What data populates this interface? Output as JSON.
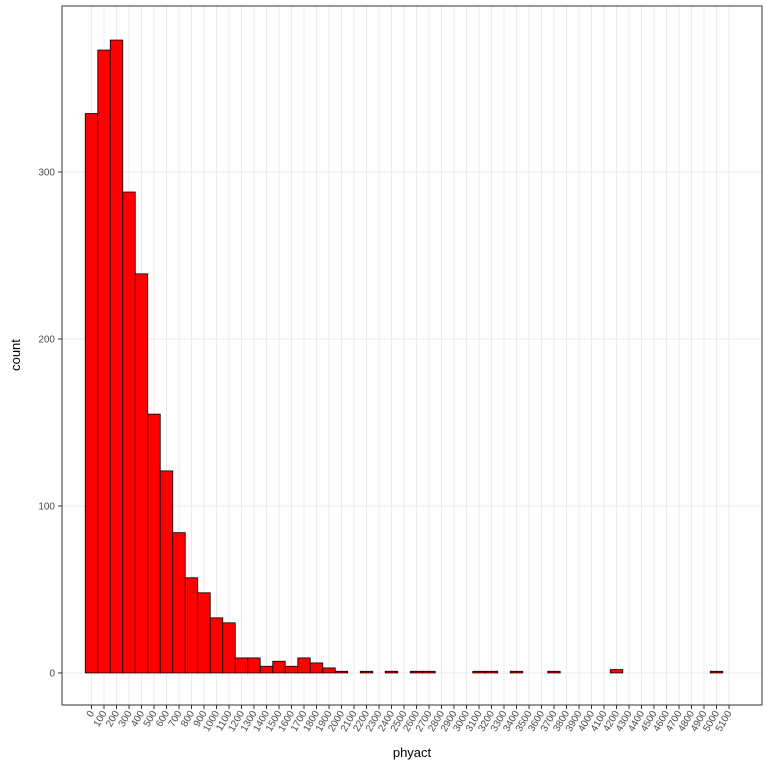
{
  "chart_data": {
    "type": "histogram",
    "x_label": "phyact",
    "y_label": "count",
    "bins": [
      -50,
      50,
      150,
      250,
      350,
      450,
      550,
      650,
      750,
      850,
      950,
      1050,
      1150,
      1250,
      1350,
      1450,
      1550,
      1650,
      1750,
      1850,
      1950,
      2050,
      2150,
      2250,
      2350,
      2450,
      2550,
      2650,
      2750,
      2850,
      2950,
      3050,
      3150,
      3250,
      3350,
      3450,
      3550,
      3650,
      3750,
      3850,
      3950,
      4050,
      4150,
      4250,
      4350,
      4450,
      4550,
      4650,
      4750,
      4850,
      4950,
      5050
    ],
    "values": [
      335,
      373,
      379,
      288,
      239,
      155,
      121,
      84,
      57,
      48,
      33,
      30,
      9,
      9,
      4,
      7,
      4,
      9,
      6,
      3,
      1,
      0,
      1,
      0,
      1,
      0,
      1,
      1,
      0,
      0,
      0,
      1,
      1,
      0,
      1,
      0,
      0,
      1,
      0,
      0,
      0,
      0,
      2,
      0,
      0,
      0,
      0,
      0,
      0,
      0,
      1
    ],
    "color": "#ff0000",
    "xlim": [
      -236,
      5364
    ],
    "ylim": [
      -19.2,
      399.4
    ],
    "xticks": [
      0,
      100,
      200,
      300,
      400,
      500,
      600,
      700,
      800,
      900,
      1000,
      1100,
      1200,
      1300,
      1400,
      1500,
      1600,
      1700,
      1800,
      1900,
      2000,
      2100,
      2200,
      2300,
      2400,
      2500,
      2600,
      2700,
      2800,
      2900,
      3000,
      3100,
      3200,
      3300,
      3400,
      3500,
      3600,
      3700,
      3800,
      3900,
      4000,
      4100,
      4200,
      4300,
      4400,
      4500,
      4600,
      4700,
      4800,
      4900,
      5000,
      5100
    ],
    "yticks": [
      0,
      100,
      200,
      300
    ],
    "grid": true
  }
}
